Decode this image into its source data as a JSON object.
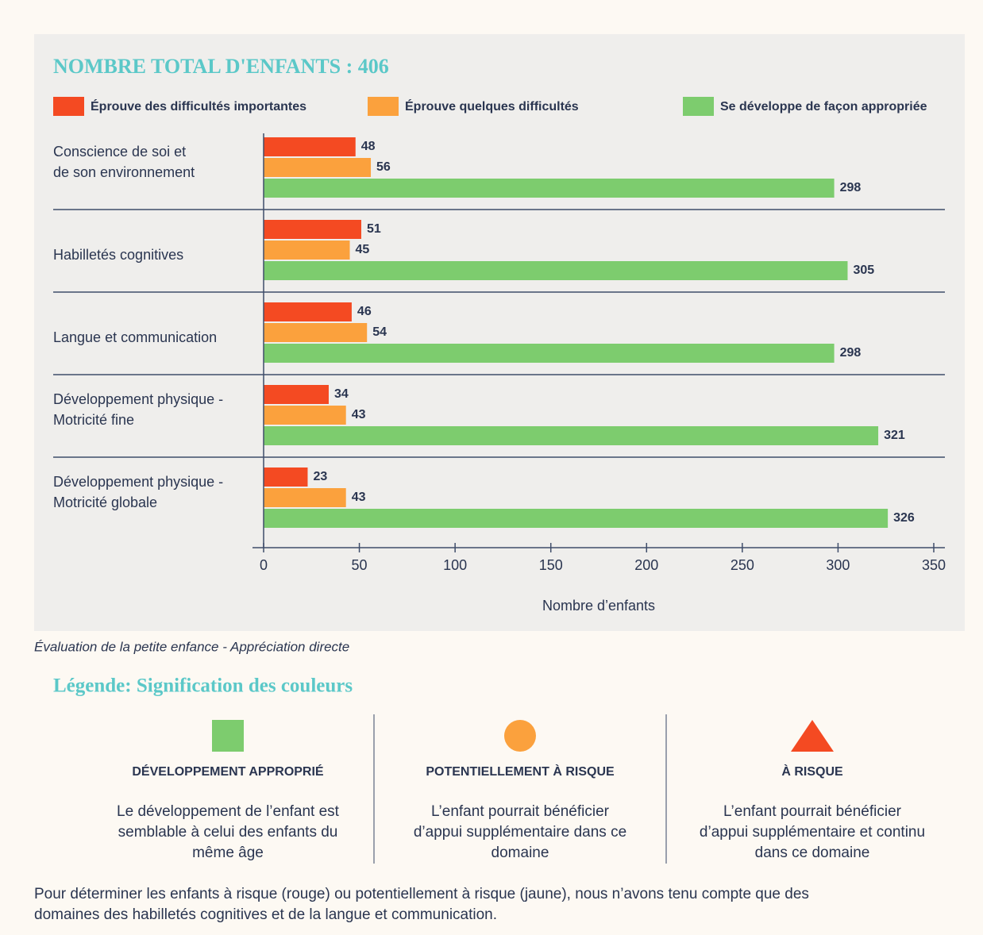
{
  "chart_data": {
    "type": "bar",
    "orientation": "horizontal",
    "title": "NOMBRE TOTAL D'ENFANTS : 406",
    "categories": [
      [
        "Conscience de soi et",
        "de son environnement"
      ],
      [
        "Habilletés cognitives"
      ],
      [
        "Langue et communication"
      ],
      [
        "Développement physique -",
        "Motricité fine"
      ],
      [
        "Développement physique -",
        "Motricité globale"
      ]
    ],
    "series": [
      {
        "name": "Éprouve des difficultés importantes",
        "color": "#f44a22",
        "values": [
          48,
          51,
          46,
          34,
          23
        ]
      },
      {
        "name": "Éprouve quelques difficultés",
        "color": "#fba13d",
        "values": [
          56,
          45,
          54,
          43,
          43
        ]
      },
      {
        "name": "Se développe de façon appropriée",
        "color": "#7dcc6e",
        "values": [
          298,
          305,
          298,
          321,
          326
        ]
      }
    ],
    "xlabel": "Nombre d’enfants",
    "xlim": [
      0,
      350
    ],
    "xticks": [
      0,
      50,
      100,
      150,
      200,
      250,
      300,
      350
    ],
    "legend": "top"
  },
  "caption": "Évaluation de la petite enfance - Appréciation directe",
  "legend_section": {
    "title": "Légende: Signification des couleurs",
    "items": [
      {
        "heading": "DÉVELOPPEMENT APPROPRIÉ",
        "lines": [
          "Le développement de l’enfant est",
          "semblable à celui des enfants du",
          "même âge"
        ]
      },
      {
        "heading": "POTENTIELLEMENT À RISQUE",
        "lines": [
          "L’enfant pourrait bénéficier",
          "d’appui supplémentaire dans ce",
          "domaine"
        ]
      },
      {
        "heading": "À RISQUE",
        "lines": [
          "L’enfant pourrait bénéficier",
          "d’appui supplémentaire et continu",
          "dans ce domaine"
        ]
      }
    ]
  },
  "footer": [
    "Pour déterminer les enfants à risque (rouge) ou potentiellement à risque (jaune), nous n’avons tenu compte que des",
    "domaines des habilletés cognitives et de la langue et communication."
  ]
}
